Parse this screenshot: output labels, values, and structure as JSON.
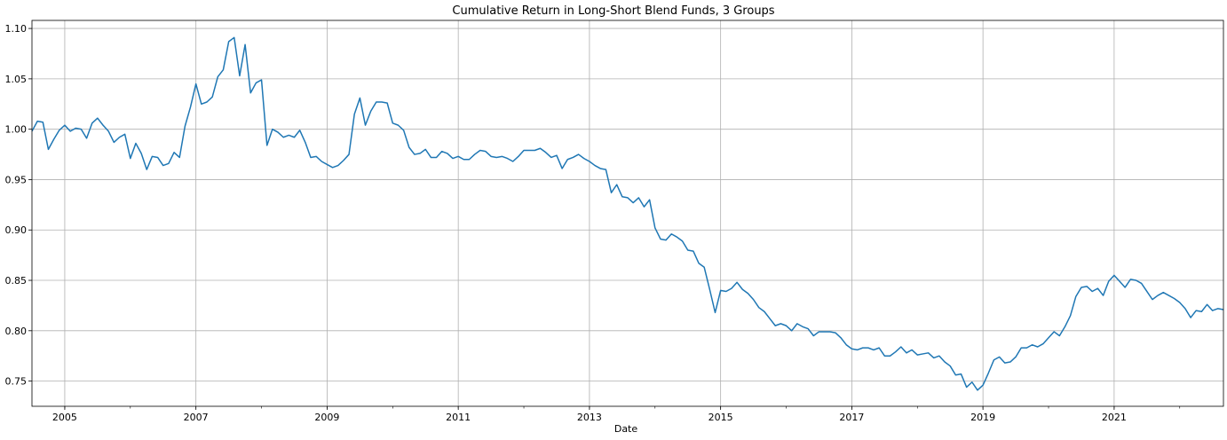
{
  "chart_data": {
    "type": "line",
    "title": "Cumulative Return in Long-Short Blend Funds, 3 Groups",
    "xlabel": "Date",
    "ylabel": "",
    "xlim": [
      "2004-07",
      "2022-09"
    ],
    "ylim": [
      0.725,
      1.108
    ],
    "x_ticks": [
      "2005",
      "2007",
      "2009",
      "2011",
      "2013",
      "2015",
      "2017",
      "2019",
      "2021"
    ],
    "y_ticks": [
      "0.75",
      "0.80",
      "0.85",
      "0.90",
      "0.95",
      "1.00",
      "1.05",
      "1.10"
    ],
    "grid": true,
    "line_color": "#1f77b4",
    "series": [
      {
        "x": [
          "2004-07",
          "2004-08",
          "2004-09",
          "2004-10",
          "2004-11",
          "2004-12",
          "2005-01",
          "2005-02",
          "2005-03",
          "2005-04",
          "2005-05",
          "2005-06",
          "2005-07",
          "2005-08",
          "2005-09",
          "2005-10",
          "2005-11",
          "2005-12",
          "2006-01",
          "2006-02",
          "2006-03",
          "2006-04",
          "2006-05",
          "2006-06",
          "2006-07",
          "2006-08",
          "2006-09",
          "2006-10",
          "2006-11",
          "2006-12",
          "2007-01",
          "2007-02",
          "2007-03",
          "2007-04",
          "2007-05",
          "2007-06",
          "2007-07",
          "2007-08",
          "2007-09",
          "2007-10",
          "2007-11",
          "2007-12",
          "2008-01",
          "2008-02",
          "2008-03",
          "2008-04",
          "2008-05",
          "2008-06",
          "2008-07",
          "2008-08",
          "2008-09",
          "2008-10",
          "2008-11",
          "2008-12",
          "2009-01",
          "2009-02",
          "2009-03",
          "2009-04",
          "2009-05",
          "2009-06",
          "2009-07",
          "2009-08",
          "2009-09",
          "2009-10",
          "2009-11",
          "2009-12",
          "2010-01",
          "2010-02",
          "2010-03",
          "2010-04",
          "2010-05",
          "2010-06",
          "2010-07",
          "2010-08",
          "2010-09",
          "2010-10",
          "2010-11",
          "2010-12",
          "2011-01",
          "2011-02",
          "2011-03",
          "2011-04",
          "2011-05",
          "2011-06",
          "2011-07",
          "2011-08",
          "2011-09",
          "2011-10",
          "2011-11",
          "2011-12",
          "2012-01",
          "2012-02",
          "2012-03",
          "2012-04",
          "2012-05",
          "2012-06",
          "2012-07",
          "2012-08",
          "2012-09",
          "2012-10",
          "2012-11",
          "2012-12",
          "2013-01",
          "2013-02",
          "2013-03",
          "2013-04",
          "2013-05",
          "2013-06",
          "2013-07",
          "2013-08",
          "2013-09",
          "2013-10",
          "2013-11",
          "2013-12",
          "2014-01",
          "2014-02",
          "2014-03",
          "2014-04",
          "2014-05",
          "2014-06",
          "2014-07",
          "2014-08",
          "2014-09",
          "2014-10",
          "2014-11",
          "2014-12",
          "2015-01",
          "2015-02",
          "2015-03",
          "2015-04",
          "2015-05",
          "2015-06",
          "2015-07",
          "2015-08",
          "2015-09",
          "2015-10",
          "2015-11",
          "2015-12",
          "2016-01",
          "2016-02",
          "2016-03",
          "2016-04",
          "2016-05",
          "2016-06",
          "2016-07",
          "2016-08",
          "2016-09",
          "2016-10",
          "2016-11",
          "2016-12",
          "2017-01",
          "2017-02",
          "2017-03",
          "2017-04",
          "2017-05",
          "2017-06",
          "2017-07",
          "2017-08",
          "2017-09",
          "2017-10",
          "2017-11",
          "2017-12",
          "2018-01",
          "2018-02",
          "2018-03",
          "2018-04",
          "2018-05",
          "2018-06",
          "2018-07",
          "2018-08",
          "2018-09",
          "2018-10",
          "2018-11",
          "2018-12",
          "2019-01",
          "2019-02",
          "2019-03",
          "2019-04",
          "2019-05",
          "2019-06",
          "2019-07",
          "2019-08",
          "2019-09",
          "2019-10",
          "2019-11",
          "2019-12",
          "2020-01",
          "2020-02",
          "2020-03",
          "2020-04",
          "2020-05",
          "2020-06",
          "2020-07",
          "2020-08",
          "2020-09",
          "2020-10",
          "2020-11",
          "2020-12",
          "2021-01",
          "2021-02",
          "2021-03",
          "2021-04",
          "2021-05",
          "2021-06",
          "2021-07",
          "2021-08",
          "2021-09",
          "2021-10",
          "2021-11",
          "2021-12",
          "2022-01",
          "2022-02",
          "2022-03",
          "2022-04",
          "2022-05",
          "2022-06",
          "2022-07",
          "2022-08",
          "2022-09"
        ],
        "values": [
          0.998,
          1.008,
          1.007,
          0.98,
          0.99,
          0.999,
          1.004,
          0.998,
          1.001,
          1.0,
          0.991,
          1.006,
          1.011,
          1.004,
          0.998,
          0.987,
          0.992,
          0.995,
          0.971,
          0.986,
          0.976,
          0.96,
          0.973,
          0.972,
          0.964,
          0.966,
          0.977,
          0.972,
          1.003,
          1.022,
          1.045,
          1.025,
          1.027,
          1.032,
          1.052,
          1.059,
          1.087,
          1.091,
          1.053,
          1.084,
          1.036,
          1.046,
          1.049,
          0.984,
          1.0,
          0.997,
          0.992,
          0.994,
          0.992,
          0.999,
          0.987,
          0.972,
          0.973,
          0.968,
          0.965,
          0.962,
          0.964,
          0.969,
          0.975,
          1.015,
          1.031,
          1.004,
          1.018,
          1.027,
          1.027,
          1.026,
          1.006,
          1.004,
          0.999,
          0.982,
          0.975,
          0.976,
          0.98,
          0.972,
          0.972,
          0.978,
          0.976,
          0.971,
          0.973,
          0.97,
          0.97,
          0.975,
          0.979,
          0.978,
          0.973,
          0.972,
          0.973,
          0.971,
          0.968,
          0.973,
          0.979,
          0.979,
          0.979,
          0.981,
          0.977,
          0.972,
          0.974,
          0.961,
          0.97,
          0.972,
          0.975,
          0.971,
          0.968,
          0.964,
          0.961,
          0.96,
          0.937,
          0.945,
          0.933,
          0.932,
          0.927,
          0.932,
          0.923,
          0.93,
          0.902,
          0.891,
          0.89,
          0.896,
          0.893,
          0.889,
          0.88,
          0.879,
          0.867,
          0.863,
          0.841,
          0.818,
          0.84,
          0.839,
          0.842,
          0.848,
          0.841,
          0.837,
          0.831,
          0.823,
          0.819,
          0.812,
          0.805,
          0.807,
          0.805,
          0.8,
          0.807,
          0.804,
          0.802,
          0.795,
          0.799,
          0.799,
          0.799,
          0.798,
          0.793,
          0.786,
          0.782,
          0.781,
          0.783,
          0.783,
          0.781,
          0.783,
          0.775,
          0.775,
          0.779,
          0.784,
          0.778,
          0.781,
          0.776,
          0.777,
          0.778,
          0.773,
          0.775,
          0.769,
          0.765,
          0.756,
          0.757,
          0.744,
          0.749,
          0.741,
          0.746,
          0.758,
          0.771,
          0.774,
          0.768,
          0.769,
          0.774,
          0.783,
          0.783,
          0.786,
          0.784,
          0.787,
          0.793,
          0.799,
          0.795,
          0.804,
          0.815,
          0.834,
          0.843,
          0.844,
          0.839,
          0.842,
          0.835,
          0.849,
          0.855,
          0.849,
          0.843,
          0.851,
          0.85,
          0.847,
          0.839,
          0.831,
          0.835,
          0.838,
          0.835,
          0.832,
          0.828,
          0.822,
          0.813,
          0.82,
          0.819,
          0.826,
          0.82,
          0.822,
          0.821
        ]
      }
    ]
  }
}
